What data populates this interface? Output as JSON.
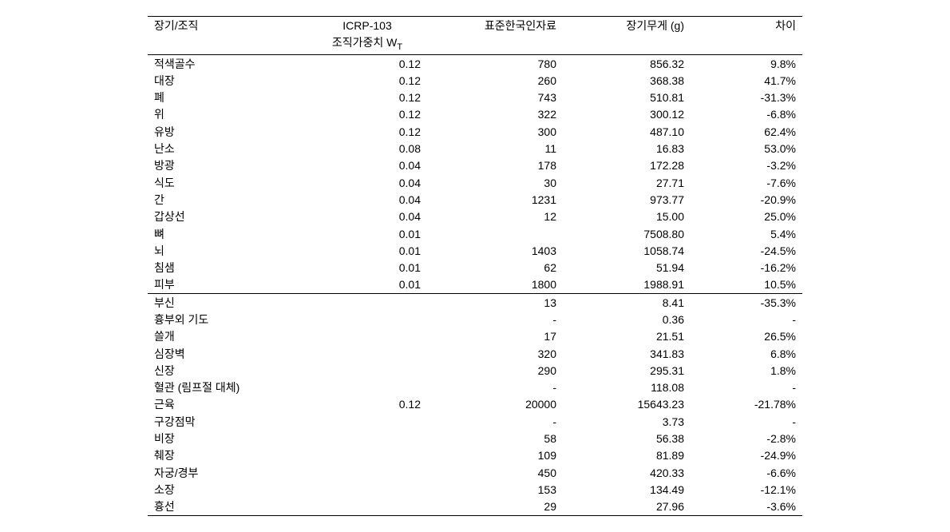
{
  "headers": {
    "organ": "장기/조직",
    "icrp": "ICRP-103",
    "icrp_sub_pre": "조직가중치 W",
    "icrp_sub_suf": "T",
    "ref": "표준한국인자료",
    "weight": "장기무게 (g)",
    "diff": "차이"
  },
  "rows_a": [
    {
      "organ": "적색골수",
      "icrp": "0.12",
      "ref": "780",
      "wt": "856.32",
      "diff": "9.8%"
    },
    {
      "organ": "대장",
      "icrp": "0.12",
      "ref": "260",
      "wt": "368.38",
      "diff": "41.7%"
    },
    {
      "organ": "폐",
      "icrp": "0.12",
      "ref": "743",
      "wt": "510.81",
      "diff": "-31.3%"
    },
    {
      "organ": "위",
      "icrp": "0.12",
      "ref": "322",
      "wt": "300.12",
      "diff": "-6.8%"
    },
    {
      "organ": "유방",
      "icrp": "0.12",
      "ref": "300",
      "wt": "487.10",
      "diff": "62.4%"
    },
    {
      "organ": "난소",
      "icrp": "0.08",
      "ref": "11",
      "wt": "16.83",
      "diff": "53.0%"
    },
    {
      "organ": "방광",
      "icrp": "0.04",
      "ref": "178",
      "wt": "172.28",
      "diff": "-3.2%"
    },
    {
      "organ": "식도",
      "icrp": "0.04",
      "ref": "30",
      "wt": "27.71",
      "diff": "-7.6%"
    },
    {
      "organ": "간",
      "icrp": "0.04",
      "ref": "1231",
      "wt": "973.77",
      "diff": "-20.9%"
    },
    {
      "organ": "갑상선",
      "icrp": "0.04",
      "ref": "12",
      "wt": "15.00",
      "diff": "25.0%"
    },
    {
      "organ": "뼈",
      "icrp": "0.01",
      "ref": "",
      "wt": "7508.80",
      "diff": "5.4%"
    },
    {
      "organ": "뇌",
      "icrp": "0.01",
      "ref": "1403",
      "wt": "1058.74",
      "diff": "-24.5%"
    },
    {
      "organ": "침샘",
      "icrp": "0.01",
      "ref": "62",
      "wt": "51.94",
      "diff": "-16.2%"
    },
    {
      "organ": "피부",
      "icrp": "0.01",
      "ref": "1800",
      "wt": "1988.91",
      "diff": "10.5%"
    }
  ],
  "rows_b": [
    {
      "organ": "부신",
      "icrp": "",
      "ref": "13",
      "wt": "8.41",
      "diff": "-35.3%"
    },
    {
      "organ": "흉부외 기도",
      "icrp": "",
      "ref": "-",
      "wt": "0.36",
      "diff": "-"
    },
    {
      "organ": "쓸개",
      "icrp": "",
      "ref": "17",
      "wt": "21.51",
      "diff": "26.5%"
    },
    {
      "organ": "심장벽",
      "icrp": "",
      "ref": "320",
      "wt": "341.83",
      "diff": "6.8%"
    },
    {
      "organ": "신장",
      "icrp": "",
      "ref": "290",
      "wt": "295.31",
      "diff": "1.8%"
    },
    {
      "organ": "혈관 (림프절 대체)",
      "icrp": "",
      "ref": "-",
      "wt": "118.08",
      "diff": "-"
    },
    {
      "organ": "근육",
      "icrp": "0.12",
      "ref": "20000",
      "wt": "15643.23",
      "diff": "-21.78%"
    },
    {
      "organ": "구강점막",
      "icrp": "",
      "ref": "-",
      "wt": "3.73",
      "diff": "-"
    },
    {
      "organ": "비장",
      "icrp": "",
      "ref": "58",
      "wt": "56.38",
      "diff": "-2.8%"
    },
    {
      "organ": "췌장",
      "icrp": "",
      "ref": "109",
      "wt": "81.89",
      "diff": "-24.9%"
    },
    {
      "organ": "자궁/경부",
      "icrp": "",
      "ref": "450",
      "wt": "420.33",
      "diff": "-6.6%"
    },
    {
      "organ": "소장",
      "icrp": "",
      "ref": "153",
      "wt": "134.49",
      "diff": "-12.1%"
    },
    {
      "organ": "흉선",
      "icrp": "",
      "ref": "29",
      "wt": "27.96",
      "diff": "-3.6%"
    }
  ]
}
